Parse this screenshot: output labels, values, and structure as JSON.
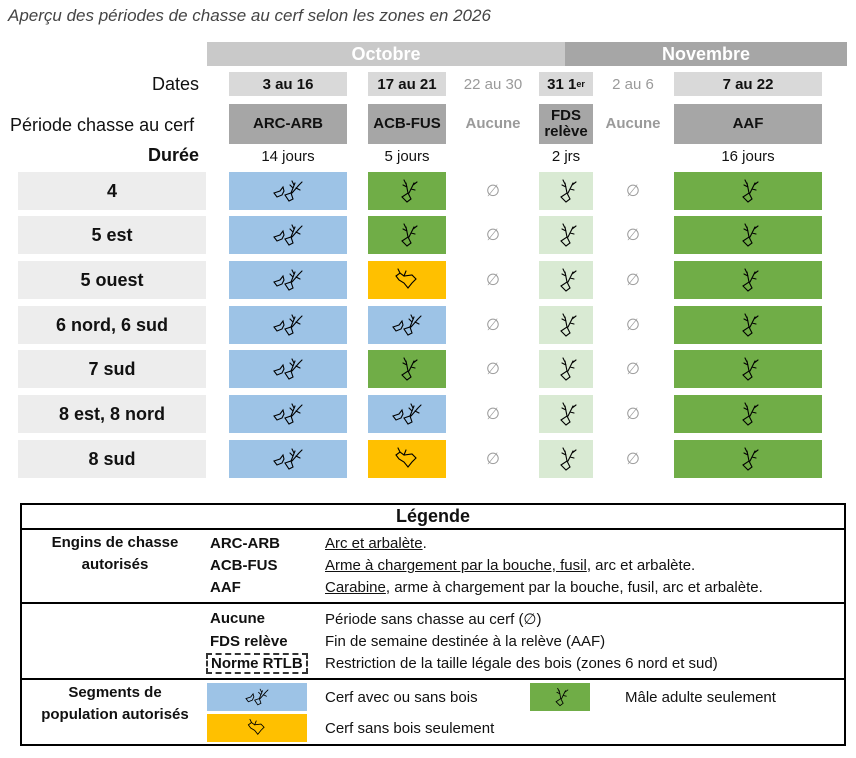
{
  "title": "Aperçu des périodes de chasse au cerf selon les zones en 2026",
  "months": {
    "october": "Octobre",
    "november": "Novembre"
  },
  "labels": {
    "dates": "Dates",
    "period": "Période chasse au cerf",
    "duration": "Durée"
  },
  "dates": [
    "3 au 16",
    "17 au 21",
    "22 au 30",
    "31",
    "1",
    "er",
    "2 au 6",
    "7 au 22"
  ],
  "periods": [
    "ARC-ARB",
    "ACB-FUS",
    "Aucune",
    "FDS relève",
    "Aucune",
    "AAF"
  ],
  "durations": [
    "14 jours",
    "5 jours",
    "2 jrs",
    "16 jours"
  ],
  "empty_symbol": "∅",
  "zones": [
    {
      "name": "4",
      "cells": [
        "blue-antlered",
        "green-male",
        "none",
        "lightgreen-male",
        "none",
        "green-male"
      ]
    },
    {
      "name": "5 est",
      "cells": [
        "blue-antlered",
        "green-male",
        "none",
        "lightgreen-male",
        "none",
        "green-male"
      ]
    },
    {
      "name": "5 ouest",
      "cells": [
        "blue-antlered",
        "orange-antlerless",
        "none",
        "lightgreen-male",
        "none",
        "green-male"
      ]
    },
    {
      "name": "6 nord, 6 sud",
      "cells": [
        "blue-antlered",
        "blue-antlered",
        "none",
        "lightgreen-male",
        "none",
        "green-male"
      ]
    },
    {
      "name": "7 sud",
      "cells": [
        "blue-antlered",
        "green-male",
        "none",
        "lightgreen-male",
        "none",
        "green-male"
      ]
    },
    {
      "name": "8 est, 8 nord",
      "cells": [
        "blue-antlered",
        "blue-antlered",
        "none",
        "lightgreen-male",
        "none",
        "green-male"
      ]
    },
    {
      "name": "8 sud",
      "cells": [
        "blue-antlered",
        "orange-antlerless",
        "none",
        "lightgreen-male",
        "none",
        "green-male"
      ]
    }
  ],
  "colors": {
    "blue": "#9dc3e6",
    "green": "#70ad47",
    "orange": "#ffc000",
    "lightgreen": "#d9ead3",
    "grey": "#a6a6a6",
    "october_bar": "#c9c9c9",
    "november_bar": "#a6a6a6"
  },
  "legend": {
    "title": "Légende",
    "gear_header": "Engins de chasse autorisés",
    "gear": [
      {
        "code": "ARC-ARB",
        "desc_u": "Arc et arbalète",
        "desc": "."
      },
      {
        "code": "ACB-FUS",
        "desc_u": "Arme à chargement par la bouche, fusil",
        "desc": ", arc et arbalète."
      },
      {
        "code": "AAF",
        "desc_u": "Carabine",
        "desc": ", arme à chargement par la bouche, fusil, arc et arbalète."
      }
    ],
    "terms": [
      {
        "code": "Aucune",
        "desc": "Période sans chasse au cerf (∅)"
      },
      {
        "code": "FDS relève",
        "desc": "Fin de semaine destinée à la relève (AAF)"
      },
      {
        "code": "Norme RTLB",
        "desc": "Restriction de la taille légale des bois (zones 6 nord et sud)"
      }
    ],
    "segments_header": "Segments de population autorisés",
    "segments": [
      {
        "desc": "Cerf avec ou sans bois"
      },
      {
        "desc": "Mâle adulte seulement"
      },
      {
        "desc": "Cerf sans bois seulement"
      }
    ]
  }
}
